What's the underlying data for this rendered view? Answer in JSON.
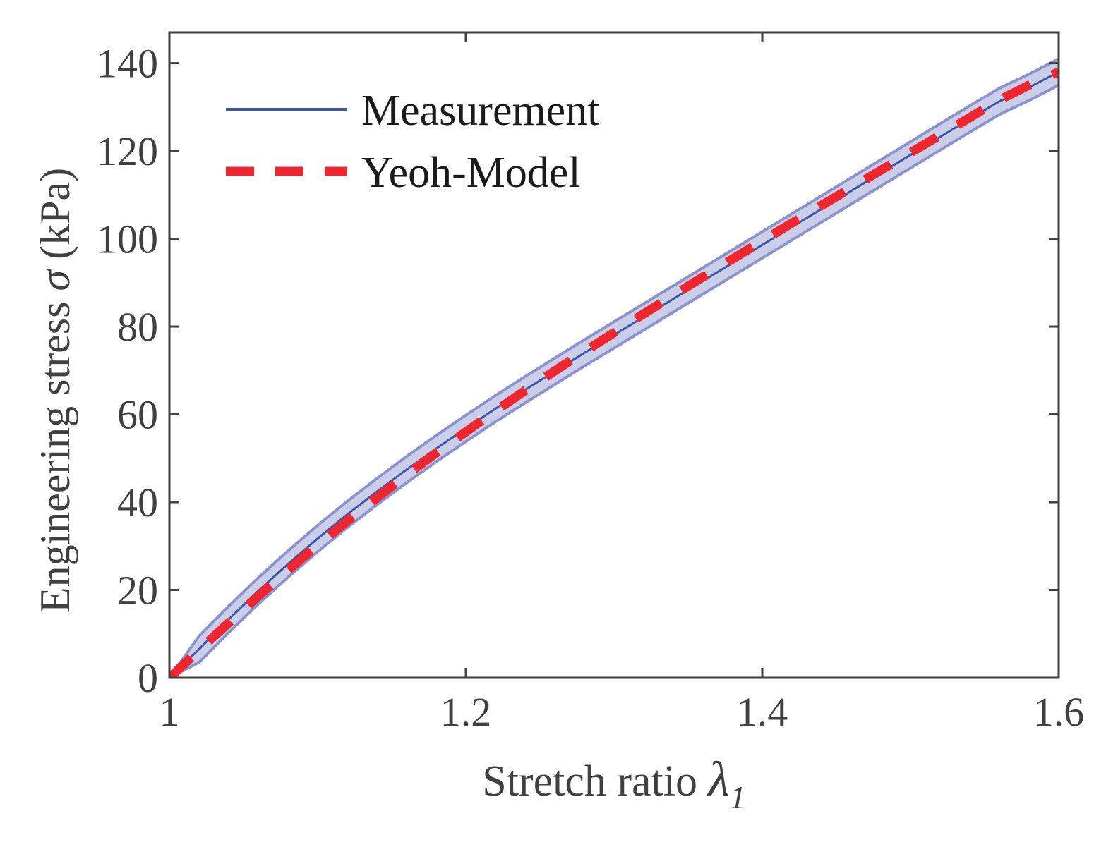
{
  "chart_data": {
    "type": "line",
    "title": "",
    "xlabel": "Stretch ratio",
    "xlabel_symbol": "λ",
    "xlabel_subscript": "1",
    "ylabel": "Engineering stress",
    "ylabel_symbol": "σ",
    "ylabel_unit": "(kPa)",
    "xlim": [
      1.0,
      1.6
    ],
    "ylim": [
      0,
      147
    ],
    "xticks": [
      1.0,
      1.2,
      1.4,
      1.6
    ],
    "xtick_labels": [
      "1",
      "1.2",
      "1.4",
      "1.6"
    ],
    "yticks": [
      0,
      20,
      40,
      60,
      80,
      100,
      120,
      140
    ],
    "ytick_labels": [
      "0",
      "20",
      "40",
      "60",
      "80",
      "100",
      "120",
      "140"
    ],
    "grid": false,
    "legend_position": "top-left",
    "colors": {
      "axis": "#404040",
      "text": "#404040",
      "measurement": "#3a56a8",
      "band": "#8b93cf",
      "model": "#ee2630"
    },
    "series": [
      {
        "name": "Measurement",
        "style": "solid",
        "x": [
          1.0,
          1.02,
          1.04,
          1.06,
          1.08,
          1.1,
          1.12,
          1.14,
          1.16,
          1.18,
          1.2,
          1.22,
          1.24,
          1.26,
          1.28,
          1.3,
          1.32,
          1.34,
          1.36,
          1.38,
          1.4,
          1.42,
          1.44,
          1.46,
          1.48,
          1.5,
          1.52,
          1.54,
          1.56,
          1.58,
          1.6
        ],
        "y": [
          0,
          6.5,
          13.3,
          19.8,
          25.9,
          31.7,
          37.2,
          42.4,
          47.4,
          52.2,
          56.8,
          61.3,
          65.6,
          69.8,
          74.0,
          78.1,
          82.2,
          86.3,
          90.4,
          94.5,
          98.6,
          102.7,
          106.8,
          110.9,
          115.0,
          119.1,
          123.2,
          127.3,
          131.3,
          134.5,
          138.0
        ],
        "band_halfwidth": 3.0
      },
      {
        "name": "Yeoh-Model",
        "style": "dashed",
        "x": [
          1.0,
          1.02,
          1.04,
          1.06,
          1.08,
          1.1,
          1.12,
          1.14,
          1.16,
          1.18,
          1.2,
          1.22,
          1.24,
          1.26,
          1.28,
          1.3,
          1.32,
          1.34,
          1.36,
          1.38,
          1.4,
          1.42,
          1.44,
          1.46,
          1.48,
          1.5,
          1.52,
          1.54,
          1.56,
          1.58,
          1.6
        ],
        "y": [
          0,
          6.3,
          12.5,
          18.6,
          24.5,
          30.2,
          35.7,
          41.0,
          46.2,
          51.2,
          56.0,
          60.8,
          65.4,
          69.9,
          74.3,
          78.6,
          82.9,
          87.1,
          91.3,
          95.4,
          99.5,
          103.6,
          107.6,
          111.6,
          115.6,
          119.6,
          123.6,
          127.6,
          131.6,
          135.0,
          138.0
        ]
      }
    ]
  }
}
